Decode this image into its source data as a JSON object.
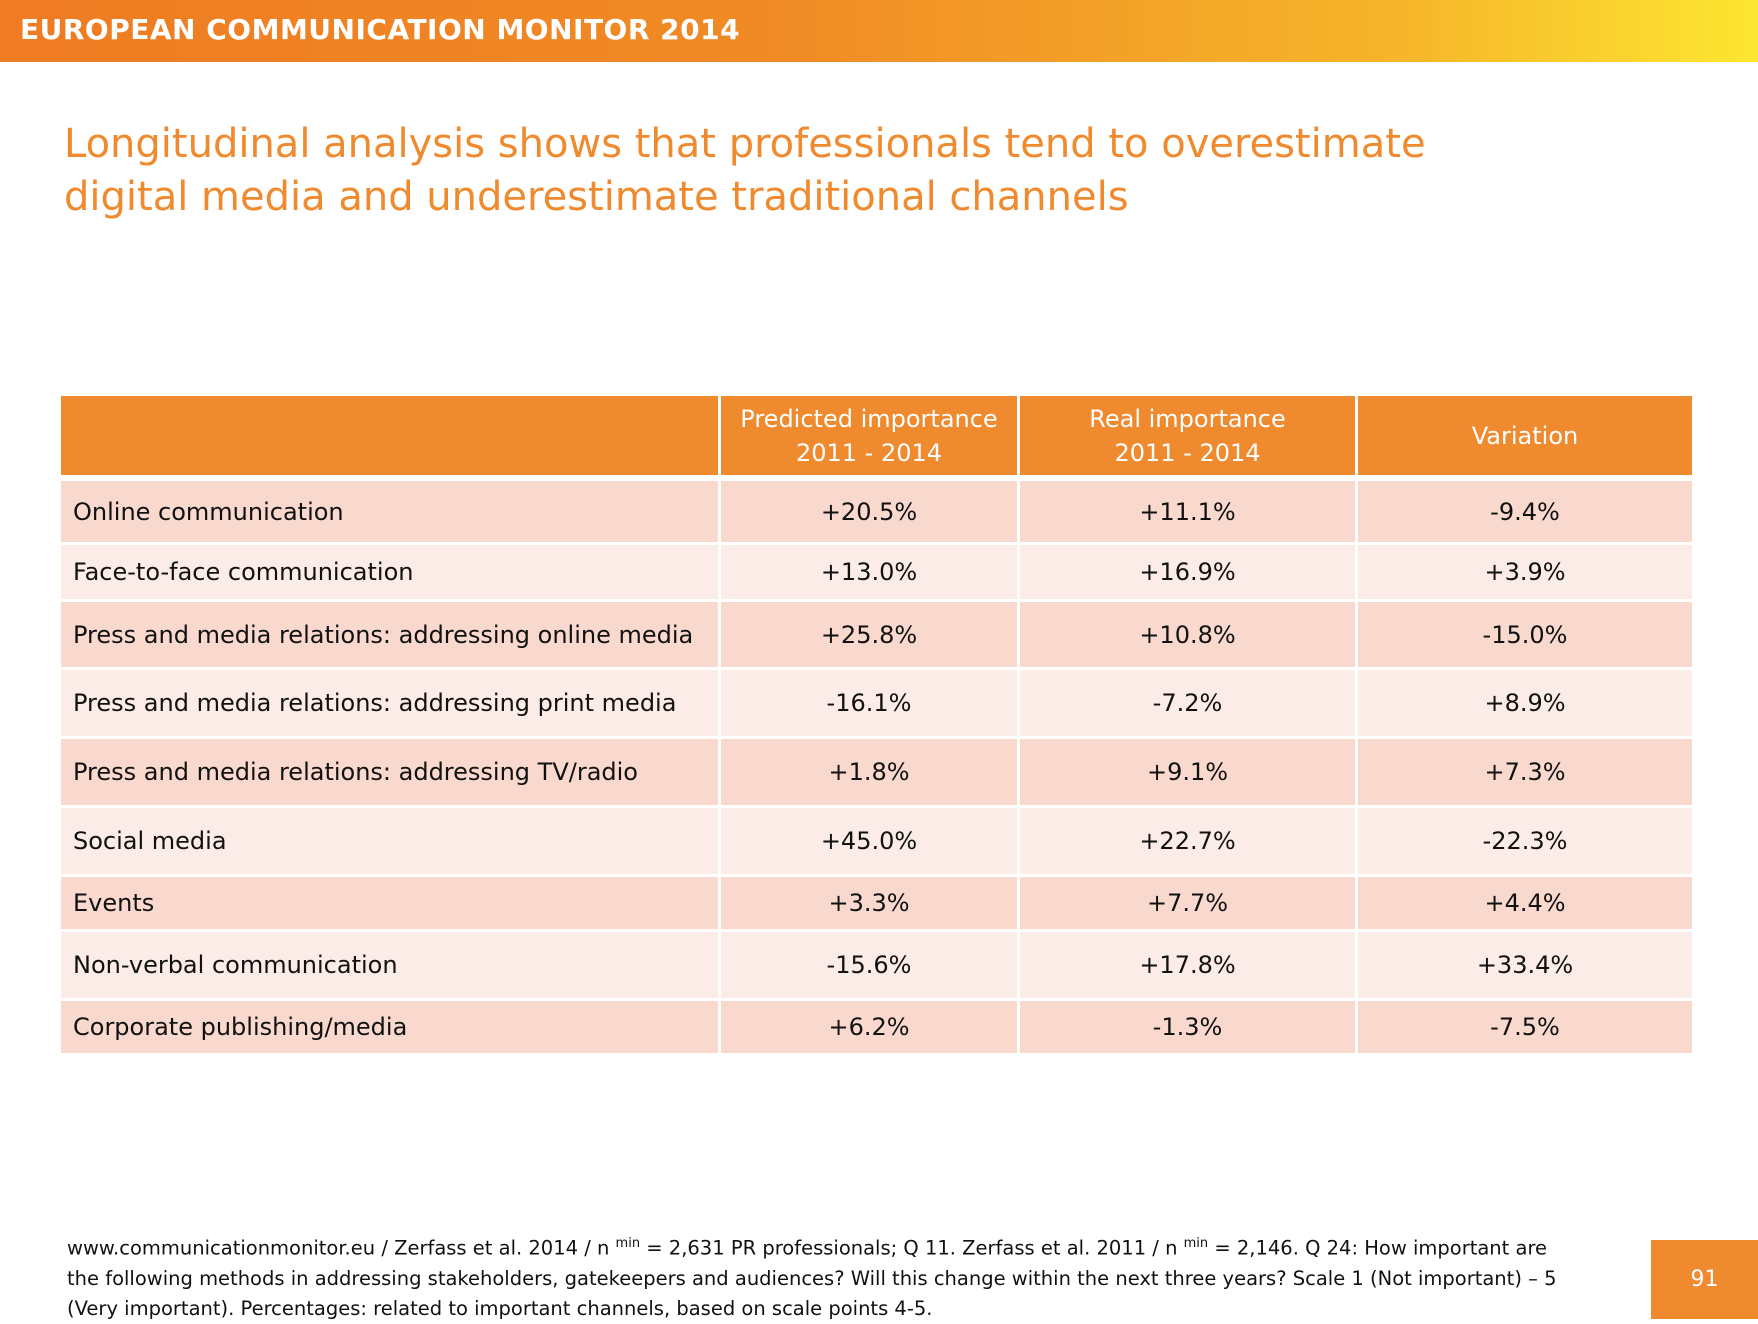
{
  "header": {
    "title": "EUROPEAN COMMUNICATION MONITOR 2014"
  },
  "headline": {
    "line1": "Longitudinal analysis shows that professionals tend to overestimate",
    "line2": "digital media and underestimate traditional channels"
  },
  "table": {
    "columns": [
      {
        "line1": "",
        "line2": ""
      },
      {
        "line1": "Predicted importance",
        "line2": "2011 - 2014"
      },
      {
        "line1": "Real importance",
        "line2": "2011 - 2014"
      },
      {
        "line1": "Variation",
        "line2": ""
      }
    ],
    "rows": [
      {
        "label": "Online communication",
        "predicted": "+20.5%",
        "real": "+11.1%",
        "variation": "-9.4%"
      },
      {
        "label": "Face-to-face communication",
        "predicted": "+13.0%",
        "real": "+16.9%",
        "variation": "+3.9%"
      },
      {
        "label": "Press and media relations: addressing online media",
        "predicted": "+25.8%",
        "real": "+10.8%",
        "variation": "-15.0%"
      },
      {
        "label": "Press and media relations: addressing print media",
        "predicted": "-16.1%",
        "real": "-7.2%",
        "variation": "+8.9%"
      },
      {
        "label": "Press and media relations: addressing TV/radio",
        "predicted": "+1.8%",
        "real": "+9.1%",
        "variation": "+7.3%"
      },
      {
        "label": "Social media",
        "predicted": "+45.0%",
        "real": "+22.7%",
        "variation": "-22.3%"
      },
      {
        "label": "Events",
        "predicted": "+3.3%",
        "real": "+7.7%",
        "variation": "+4.4%"
      },
      {
        "label": "Non-verbal communication",
        "predicted": "-15.6%",
        "real": "+17.8%",
        "variation": "+33.4%"
      },
      {
        "label": "Corporate publishing/media",
        "predicted": "+6.2%",
        "real": "-1.3%",
        "variation": "-7.5%"
      }
    ]
  },
  "footer": {
    "seg1": "www.communicationmonitor.eu / Zerfass et al. 2014 / n ",
    "sup1": "min",
    "seg2": " = 2,631 PR professionals; Q 11. Zerfass et al. 2011 / n ",
    "sup2": "min",
    "seg3": " = 2,146. Q 24: How important are the  following methods in addressing stakeholders, gatekeepers and audiences? Will this change within the next three years? Scale 1 (Not important) – 5 (Very important). Percentages: related to important channels, based on scale points 4-5."
  },
  "page_number": "91",
  "colors": {
    "accent": "#ef8a2e",
    "row_dark": "#f9d9ce",
    "row_light": "#fcece7"
  }
}
